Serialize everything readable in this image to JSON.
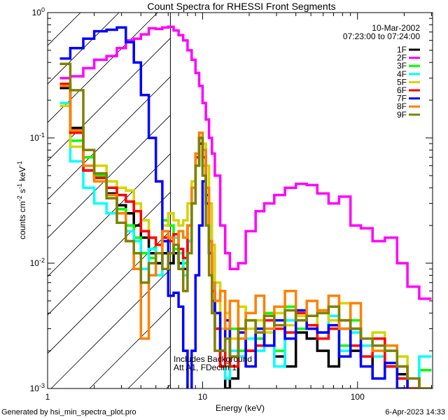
{
  "chart_data": {
    "type": "line",
    "title": "Count Spectra for RHESSI Front Segments",
    "date": "10-Mar-2002",
    "time_range": "07:23:00 to 07:24:00",
    "xlabel": "Energy (keV)",
    "ylabel_parts": [
      "counts cm",
      "-2",
      " s",
      "-1",
      " keV",
      "-1"
    ],
    "xscale": "log",
    "yscale": "log",
    "xlim": [
      1,
      305
    ],
    "ylim": [
      0.001,
      1
    ],
    "x_tick_labels": [
      {
        "value": 1,
        "label": "1"
      },
      {
        "value": 10,
        "label": "10"
      },
      {
        "value": 100,
        "label": "100"
      }
    ],
    "y_tick_labels": [
      {
        "value": 1,
        "base": "10",
        "exp": "0"
      },
      {
        "value": 0.1,
        "base": "10",
        "exp": "-1"
      },
      {
        "value": 0.01,
        "base": "10",
        "exp": "-2"
      },
      {
        "value": 0.001,
        "base": "10",
        "exp": "-3"
      }
    ],
    "shaded_region": {
      "xmax": 6.2,
      "style": "hatched"
    },
    "annotations": [
      "Includes Background",
      "Att A1, FDecim 1"
    ],
    "legend_position": "top-right",
    "energy_edges": [
      1.2,
      1.4,
      1.7,
      2.0,
      2.4,
      2.8,
      3.2,
      3.6,
      4.0,
      4.5,
      5.0,
      5.5,
      6.0,
      6.5,
      7,
      7.5,
      8,
      8.5,
      9,
      9.5,
      10,
      10.5,
      11,
      11.5,
      12,
      13,
      14,
      15,
      17,
      19,
      22,
      25,
      29,
      34,
      40,
      47,
      55,
      65,
      76,
      90,
      105,
      125,
      150,
      180,
      210,
      250,
      300
    ],
    "series": [
      {
        "name": "1F",
        "color": "#000000",
        "values": [
          0.25,
          0.12,
          0.055,
          0.048,
          0.036,
          0.029,
          0.025,
          0.02,
          0.016,
          0.012,
          0.01,
          0.012,
          0.01,
          0.012,
          0.01,
          0.009,
          0.015,
          0.03,
          0.06,
          0.09,
          0.07,
          0.035,
          0.012,
          0.005,
          0.003,
          0.0015,
          0.001,
          0.0012,
          0.0025,
          0.002,
          0.003,
          0.0022,
          0.0018,
          0.0015,
          0.0028,
          0.0025,
          0.002,
          0.0015,
          0.003,
          0.002,
          0.0018,
          0.0012,
          0.0015,
          0.0013,
          0.0012,
          0.0008
        ]
      },
      {
        "name": "2F",
        "color": "#ff00ff",
        "values": [
          0.3,
          0.31,
          0.36,
          0.42,
          0.45,
          0.52,
          0.6,
          0.62,
          0.67,
          0.75,
          0.74,
          0.76,
          0.77,
          0.72,
          0.66,
          0.6,
          0.5,
          0.42,
          0.33,
          0.26,
          0.19,
          0.14,
          0.1,
          0.075,
          0.05,
          0.02,
          0.012,
          0.009,
          0.01,
          0.018,
          0.026,
          0.03,
          0.035,
          0.04,
          0.043,
          0.042,
          0.036,
          0.03,
          0.034,
          0.02,
          0.019,
          0.015,
          0.016,
          0.01,
          0.0065,
          0.0052
        ]
      },
      {
        "name": "3F",
        "color": "#00ff00",
        "values": [
          0.27,
          0.095,
          0.07,
          0.05,
          0.035,
          0.027,
          0.02,
          0.016,
          0.012,
          0.011,
          0.014,
          0.022,
          0.02,
          0.013,
          0.009,
          0.01,
          0.02,
          0.04,
          0.07,
          0.1,
          0.06,
          0.03,
          0.012,
          0.006,
          0.003,
          0.002,
          0.0015,
          0.003,
          0.002,
          0.0035,
          0.0025,
          0.004,
          0.002,
          0.0045,
          0.003,
          0.0038,
          0.0028,
          0.003,
          0.0022,
          0.0035,
          0.0018,
          0.0025,
          0.0015,
          0.0012,
          0.001,
          0.0014
        ]
      },
      {
        "name": "4F",
        "color": "#00ffff",
        "values": [
          0.19,
          0.065,
          0.04,
          0.03,
          0.025,
          0.021,
          0.018,
          0.015,
          0.009,
          0.013,
          0.008,
          0.015,
          0.012,
          0.016,
          0.012,
          0.008,
          0.015,
          0.03,
          0.06,
          0.11,
          0.08,
          0.04,
          0.015,
          0.006,
          0.003,
          0.002,
          0.0012,
          0.002,
          0.0018,
          0.0025,
          0.002,
          0.003,
          0.0015,
          0.0035,
          0.004,
          0.003,
          0.0025,
          0.0038,
          0.002,
          0.0028,
          0.0022,
          0.0018,
          0.002,
          0.0015,
          0.0012,
          0.0018
        ]
      },
      {
        "name": "5F",
        "color": "#d4d400",
        "values": [
          0.18,
          0.085,
          0.08,
          0.06,
          0.045,
          0.04,
          0.038,
          0.03,
          0.022,
          0.016,
          0.014,
          0.02,
          0.025,
          0.022,
          0.02,
          0.022,
          0.03,
          0.045,
          0.07,
          0.1,
          0.09,
          0.06,
          0.03,
          0.014,
          0.007,
          0.003,
          0.004,
          0.0025,
          0.0045,
          0.003,
          0.0035,
          0.0028,
          0.004,
          0.0032,
          0.0038,
          0.003,
          0.0042,
          0.0035,
          0.0048,
          0.003,
          0.0025,
          0.0028,
          0.0022,
          0.0018,
          0.0012,
          0.001
        ]
      },
      {
        "name": "6F",
        "color": "#ff0000",
        "values": [
          0.27,
          0.11,
          0.055,
          0.048,
          0.04,
          0.035,
          0.031,
          0.026,
          0.018,
          0.016,
          0.014,
          0.016,
          0.015,
          0.017,
          0.013,
          0.011,
          0.02,
          0.04,
          0.07,
          0.1,
          0.07,
          0.03,
          0.012,
          0.006,
          0.003,
          0.0015,
          0.0025,
          0.0015,
          0.003,
          0.002,
          0.0022,
          0.0035,
          0.003,
          0.0028,
          0.004,
          0.0032,
          0.0025,
          0.003,
          0.0035,
          0.0022,
          0.0018,
          0.0025,
          0.0015,
          0.0012,
          0.001,
          0.0009
        ]
      },
      {
        "name": "7F",
        "color": "#0000ff",
        "values": [
          0.43,
          0.52,
          0.62,
          0.71,
          0.73,
          0.76,
          0.58,
          0.4,
          0.22,
          0.1,
          0.045,
          0.015,
          0.0055,
          0.0058,
          0.0045,
          0.002,
          0.0008,
          0.002,
          0.008,
          0.02,
          0.045,
          0.03,
          0.012,
          0.007,
          0.004,
          0.002,
          0.0035,
          0.0018,
          0.0028,
          0.0015,
          0.003,
          0.0022,
          0.0035,
          0.0025,
          0.0042,
          0.003,
          0.0028,
          0.0032,
          0.0018,
          0.003,
          0.0015,
          0.0012,
          0.0016,
          0.001,
          0.0012,
          0.0009
        ]
      },
      {
        "name": "8F",
        "color": "#ff8000",
        "values": [
          0.26,
          0.115,
          0.06,
          0.045,
          0.035,
          0.025,
          0.015,
          0.009,
          0.0025,
          0.008,
          0.012,
          0.018,
          0.016,
          0.014,
          0.018,
          0.016,
          0.02,
          0.04,
          0.075,
          0.11,
          0.08,
          0.04,
          0.015,
          0.007,
          0.005,
          0.006,
          0.003,
          0.005,
          0.0025,
          0.004,
          0.0055,
          0.003,
          0.0045,
          0.006,
          0.0035,
          0.005,
          0.0042,
          0.0055,
          0.003,
          0.0048,
          0.0025,
          0.002,
          0.0022,
          0.0015,
          0.0012,
          0.001
        ]
      },
      {
        "name": "9F",
        "color": "#808000",
        "values": [
          0.39,
          0.24,
          0.08,
          0.052,
          0.033,
          0.021,
          0.015,
          0.012,
          0.007,
          0.01,
          0.012,
          0.009,
          0.012,
          0.014,
          0.009,
          0.006,
          0.012,
          0.03,
          0.06,
          0.1,
          0.05,
          0.02,
          0.008,
          0.004,
          0.002,
          0.002,
          0.0025,
          0.0018,
          0.003,
          0.0035,
          0.0028,
          0.0038,
          0.0032,
          0.0042,
          0.0035,
          0.0038,
          0.004,
          0.0045,
          0.0035,
          0.003,
          0.0025,
          0.0022,
          0.002,
          0.0015,
          0.0012,
          0.001
        ]
      }
    ]
  },
  "footer": {
    "generated_by": "Generated by hsi_min_spectra_plot.pro",
    "timestamp": "6-Apr-2023 14:33"
  }
}
